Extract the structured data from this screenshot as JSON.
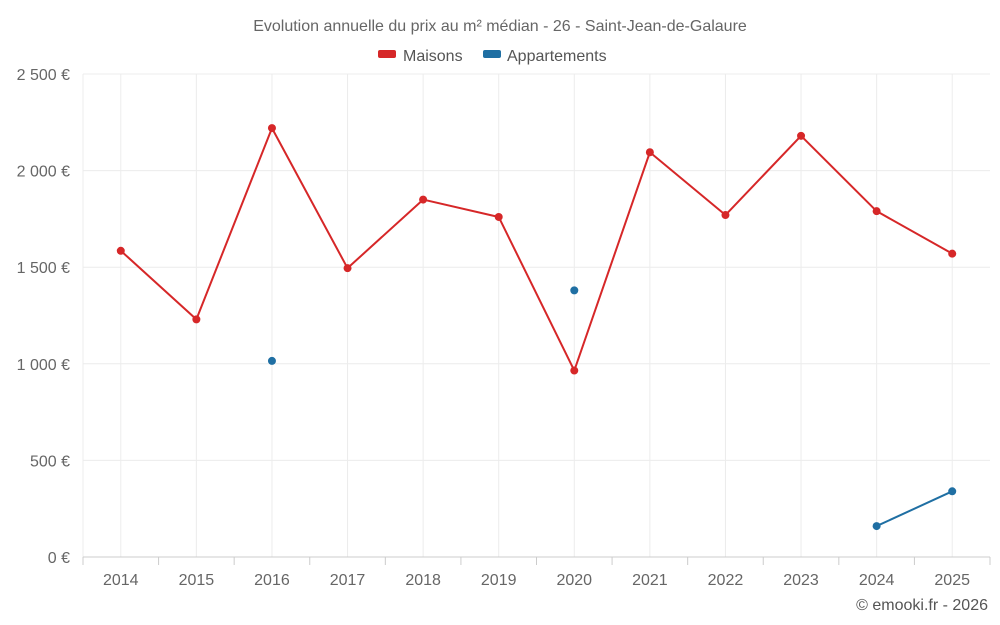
{
  "chart_data": {
    "type": "line",
    "title": "Evolution annuelle du prix au m² médian - 26 - Saint-Jean-de-Galaure",
    "categories": [
      "2014",
      "2015",
      "2016",
      "2017",
      "2018",
      "2019",
      "2020",
      "2021",
      "2022",
      "2023",
      "2024",
      "2025"
    ],
    "series": [
      {
        "name": "Maisons",
        "color": "#d62728",
        "values": [
          1585,
          1230,
          2220,
          1495,
          1850,
          1760,
          965,
          2095,
          1770,
          2180,
          1790,
          1570
        ]
      },
      {
        "name": "Appartements",
        "color": "#1f6fa3",
        "values": [
          null,
          null,
          1015,
          null,
          null,
          null,
          1380,
          null,
          null,
          null,
          160,
          340
        ]
      }
    ],
    "y_ticks": [
      "0 €",
      "500 €",
      "1 000 €",
      "1 500 €",
      "2 000 €",
      "2 500 €"
    ],
    "ylim": [
      0,
      2500
    ],
    "xlabel": "",
    "ylabel": "",
    "legend": "top-center",
    "grid": true
  },
  "credit": "© emooki.fr - 2026"
}
